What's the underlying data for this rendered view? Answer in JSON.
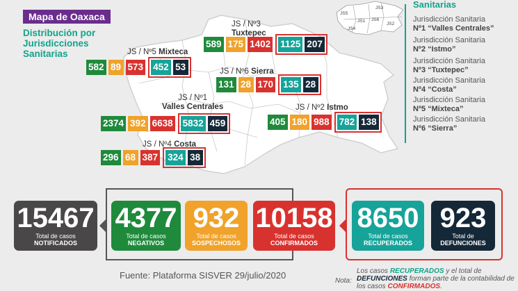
{
  "header": {
    "title": "Mapa de Oaxaca",
    "subtitle": "Distribución por Jurisdicciones Sanitarias"
  },
  "colors": {
    "purple": "#6a2c8e",
    "teal": "#16a399",
    "green": "#1f8a3b",
    "orange": "#f0a22a",
    "red": "#d8322f",
    "navy": "#152838",
    "gray": "#4a4748"
  },
  "mini_map_labels": [
    "JS5",
    "JS3",
    "JS1",
    "JS6",
    "JS2",
    "JS4"
  ],
  "legend": {
    "title": "Sanitarias",
    "items": [
      {
        "line1": "Jurisdicción Sanitaria",
        "line2": "Nº1 “Valles Centrales”"
      },
      {
        "line1": "Jurisdicción Sanitaria",
        "line2": "Nº2 “Istmo”"
      },
      {
        "line1": "Jurisdicción Sanitaria",
        "line2": "Nº3 “Tuxtepec”"
      },
      {
        "line1": "Jurisdicción Sanitaria",
        "line2": "Nº4 “Costa”"
      },
      {
        "line1": "Jurisdicción Sanitaria",
        "line2": "Nº5 “Mixteca”"
      },
      {
        "line1": "Jurisdicción Sanitaria",
        "line2": "Nº6 “Sierra”"
      }
    ]
  },
  "jurisdictions": {
    "tuxtepec": {
      "pre": "JS / Nº3",
      "name": "Tuxtepec",
      "values": [
        "589",
        "175",
        "1402",
        "1125",
        "207"
      ]
    },
    "mixteca": {
      "pre": "JS / Nº5",
      "name": "Mixteca",
      "values": [
        "582",
        "89",
        "573",
        "452",
        "53"
      ]
    },
    "sierra": {
      "pre": "JS / Nº6",
      "name": "Sierra",
      "values": [
        "131",
        "28",
        "170",
        "135",
        "28"
      ]
    },
    "valles": {
      "pre": "JS / Nº1",
      "name": "Valles Centrales",
      "values": [
        "2374",
        "392",
        "6638",
        "5832",
        "459"
      ]
    },
    "istmo": {
      "pre": "JS / Nº2",
      "name": "Istmo",
      "values": [
        "405",
        "180",
        "988",
        "782",
        "138"
      ]
    },
    "costa": {
      "pre": "JS / Nº4",
      "name": "Costa",
      "values": [
        "296",
        "68",
        "387",
        "324",
        "38"
      ]
    }
  },
  "totals": {
    "notificados": {
      "value": "15467",
      "label1": "Total de casos",
      "label2": "NOTIFICADOS"
    },
    "negativos": {
      "value": "4377",
      "label1": "Total de casos",
      "label2": "NEGATIVOS"
    },
    "sospechosos": {
      "value": "932",
      "label1": "Total de casos",
      "label2": "SOSPECHOSOS"
    },
    "confirmados": {
      "value": "10158",
      "label1": "Total de casos",
      "label2": "CONFIRMADOS"
    },
    "recuperados": {
      "value": "8650",
      "label1": "Total de casos",
      "label2": "RECUPERADOS"
    },
    "defunciones": {
      "value": "923",
      "label1": "Total de",
      "label2": "DEFUNCIONES"
    }
  },
  "footer": {
    "source": "Fuente: Plataforma SISVER 29/julio/2020",
    "note_label": "Nota:",
    "note_p1": "Los casos ",
    "note_rec": "RECUPERADOS",
    "note_p2": " y el total de ",
    "note_def": "DEFUNCIONES",
    "note_p3": " forman parte de la contabilidad de los casos ",
    "note_conf": "CONFIRMADOS",
    "note_p4": "."
  }
}
